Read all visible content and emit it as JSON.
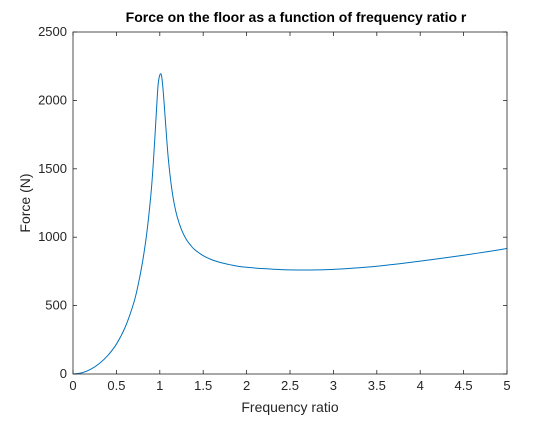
{
  "chart_data": {
    "type": "line",
    "title": "Force on the floor as a function of frequency ratio r",
    "xlabel": "Frequency ratio",
    "ylabel": "Force (N)",
    "xlim": [
      0,
      5
    ],
    "ylim": [
      0,
      2500
    ],
    "x_ticks": [
      0,
      0.5,
      1,
      1.5,
      2,
      2.5,
      3,
      3.5,
      4,
      4.5,
      5
    ],
    "x_tick_labels": [
      "0",
      "0.5",
      "1",
      "1.5",
      "2",
      "2.5",
      "3",
      "3.5",
      "4",
      "4.5",
      "5"
    ],
    "y_ticks": [
      0,
      500,
      1000,
      1500,
      2000,
      2500
    ],
    "y_tick_labels": [
      "0",
      "500",
      "1000",
      "1500",
      "2000",
      "2500"
    ],
    "grid": false,
    "box": true,
    "series": [
      {
        "name": "Force",
        "color": "#0072BD",
        "x": [
          0,
          0.1,
          0.2,
          0.3,
          0.4,
          0.5,
          0.6,
          0.7,
          0.75,
          0.8,
          0.85,
          0.9,
          0.93,
          0.96,
          0.98,
          1.0,
          1.02,
          1.04,
          1.06,
          1.08,
          1.1,
          1.13,
          1.16,
          1.2,
          1.25,
          1.3,
          1.35,
          1.4,
          1.5,
          1.6,
          1.7,
          1.8,
          1.9,
          2.0,
          2.2,
          2.4,
          2.6,
          2.7,
          2.8,
          3.0,
          3.25,
          3.5,
          3.75,
          4.0,
          4.25,
          4.5,
          4.75,
          5.0
        ],
        "y": [
          0,
          8,
          33,
          75,
          135,
          218,
          340,
          520,
          650,
          815,
          1030,
          1330,
          1590,
          1910,
          2110,
          2185,
          2180,
          2060,
          1890,
          1715,
          1560,
          1390,
          1265,
          1150,
          1055,
          990,
          945,
          910,
          865,
          835,
          815,
          800,
          788,
          780,
          770,
          763,
          760,
          760,
          761,
          765,
          775,
          788,
          805,
          825,
          846,
          868,
          892,
          917
        ]
      }
    ]
  }
}
